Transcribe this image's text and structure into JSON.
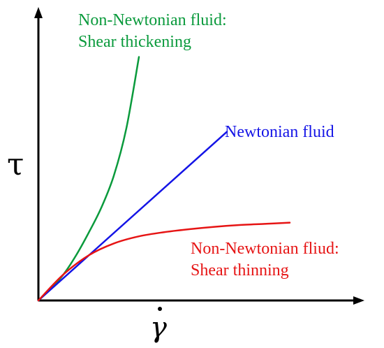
{
  "chart_data": {
    "type": "line",
    "title": "",
    "xlabel": "γ̇",
    "ylabel": "τ",
    "grid": false,
    "series": [
      {
        "name": "Non-Newtonian fluid: Shear thickening",
        "label_lines": [
          "Non-Newtonian fluid:",
          "Shear thickening"
        ],
        "color": "#0a9a3c",
        "x": [
          0,
          0.05,
          0.1,
          0.15,
          0.2,
          0.25,
          0.3,
          0.35,
          0.4
        ],
        "y": [
          0,
          0.1,
          0.22,
          0.38,
          0.57,
          0.78,
          1.05,
          1.45,
          2.05
        ]
      },
      {
        "name": "Newtonian fluid",
        "label_lines": [
          "Newtonian fluid"
        ],
        "color": "#1414e6",
        "x": [
          0,
          0.75
        ],
        "y": [
          0,
          1.42
        ]
      },
      {
        "name": "Non-Newtonian fliud: Shear thinning",
        "label_lines": [
          "Non-Newtonian fliud:",
          "Shear thinning"
        ],
        "color": "#e61414",
        "x": [
          0,
          0.1,
          0.2,
          0.3,
          0.4,
          0.5,
          0.6,
          0.7,
          0.8,
          0.9,
          1.0
        ],
        "y": [
          0,
          0.22,
          0.38,
          0.48,
          0.54,
          0.575,
          0.6,
          0.62,
          0.635,
          0.645,
          0.655
        ]
      }
    ]
  }
}
